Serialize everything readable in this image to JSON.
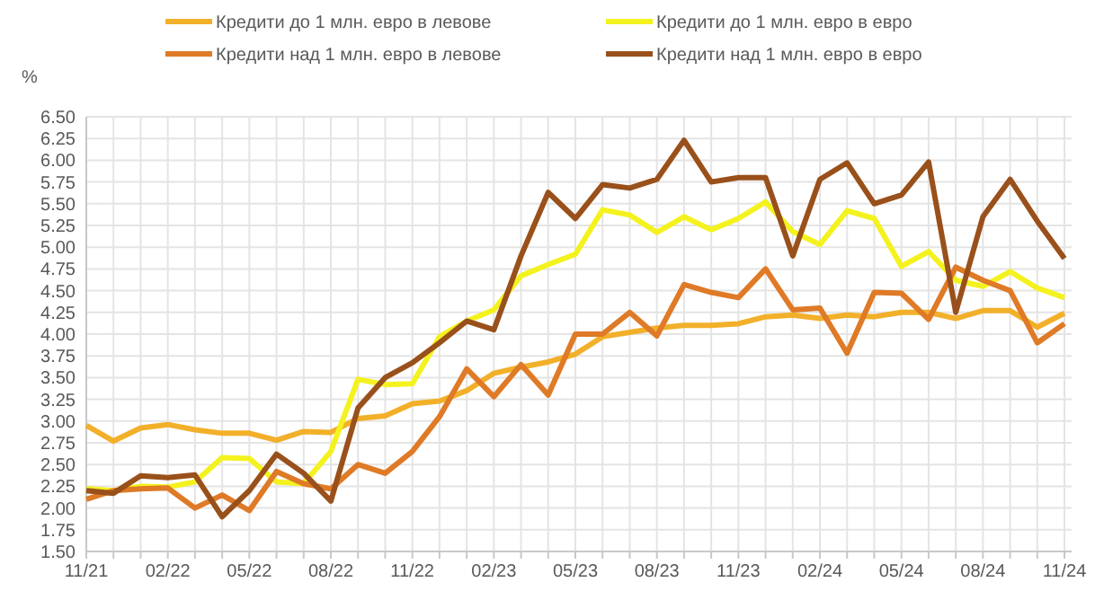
{
  "chart_data": {
    "type": "line",
    "ylabel": "%",
    "categories": [
      "11/21",
      null,
      null,
      "02/22",
      null,
      null,
      "05/22",
      null,
      null,
      "08/22",
      null,
      null,
      "11/22",
      null,
      null,
      "02/23",
      null,
      null,
      "05/23",
      null,
      null,
      "08/23",
      null,
      null,
      "11/23",
      null,
      null,
      "02/24",
      null,
      null,
      "05/24",
      null,
      null,
      "08/24",
      null,
      null,
      "11/24"
    ],
    "series": [
      {
        "name": "Кредити до 1 млн. евро в левове",
        "color": "#f2b02a",
        "values": [
          2.95,
          2.77,
          2.92,
          2.96,
          2.9,
          2.86,
          2.86,
          2.78,
          2.88,
          2.87,
          3.03,
          3.06,
          3.2,
          3.23,
          3.35,
          3.55,
          3.62,
          3.68,
          3.77,
          3.97,
          4.02,
          4.07,
          4.1,
          4.1,
          4.12,
          4.2,
          4.22,
          4.18,
          4.22,
          4.2,
          4.25,
          4.25,
          4.18,
          4.27,
          4.27,
          4.08,
          4.24
        ]
      },
      {
        "name": "Кредити до 1 млн. евро в евро",
        "color": "#f4f21e",
        "values": [
          2.22,
          2.2,
          2.25,
          2.24,
          2.3,
          2.58,
          2.57,
          2.3,
          2.28,
          2.65,
          3.48,
          3.42,
          3.43,
          3.97,
          4.15,
          4.28,
          4.67,
          4.8,
          4.92,
          5.43,
          5.37,
          5.17,
          5.35,
          5.2,
          5.33,
          5.52,
          5.18,
          5.03,
          5.42,
          5.33,
          4.78,
          4.95,
          4.62,
          4.55,
          4.72,
          4.53,
          4.42
        ]
      },
      {
        "name": "Кредити над 1 млн. евро в левове",
        "color": "#df7a26",
        "values": [
          2.1,
          2.2,
          2.22,
          2.23,
          2.0,
          2.15,
          1.97,
          2.42,
          2.28,
          2.22,
          2.5,
          2.4,
          2.65,
          3.05,
          3.6,
          3.28,
          3.65,
          3.3,
          4.0,
          4.0,
          4.25,
          3.98,
          4.57,
          4.48,
          4.42,
          4.75,
          4.28,
          4.3,
          3.78,
          4.48,
          4.47,
          4.17,
          4.77,
          4.62,
          4.5,
          3.9,
          4.12
        ]
      },
      {
        "name": "Кредити над 1 млн. евро в евро",
        "color": "#99501a",
        "values": [
          2.2,
          2.17,
          2.37,
          2.35,
          2.38,
          1.9,
          2.2,
          2.62,
          2.4,
          2.08,
          3.15,
          3.5,
          3.67,
          3.9,
          4.15,
          4.05,
          4.9,
          5.63,
          5.33,
          5.72,
          5.68,
          5.78,
          6.23,
          5.75,
          5.8,
          5.8,
          4.9,
          5.78,
          5.97,
          5.5,
          5.6,
          5.98,
          4.25,
          5.35,
          5.78,
          5.3,
          4.87
        ]
      }
    ],
    "ylim": [
      1.5,
      6.5
    ],
    "yticks": [
      {
        "value": 1.5,
        "label": "1.50"
      },
      {
        "value": 1.75,
        "label": "1.75"
      },
      {
        "value": 2,
        "label": "2.00"
      },
      {
        "value": 2.25,
        "label": "2.25"
      },
      {
        "value": 2.5,
        "label": "2.50"
      },
      {
        "value": 2.75,
        "label": "2.75"
      },
      {
        "value": 3,
        "label": "3.00"
      },
      {
        "value": 3.25,
        "label": "3.25"
      },
      {
        "value": 3.5,
        "label": "3.50"
      },
      {
        "value": 3.75,
        "label": "3.75"
      },
      {
        "value": 4,
        "label": "4.00"
      },
      {
        "value": 4.25,
        "label": "4.25"
      },
      {
        "value": 4.5,
        "label": "4.50"
      },
      {
        "value": 4.75,
        "label": "4.75"
      },
      {
        "value": 5,
        "label": "5.00"
      },
      {
        "value": 5.25,
        "label": "5.25"
      },
      {
        "value": 5.5,
        "label": "5.50"
      },
      {
        "value": 5.75,
        "label": "5.75"
      },
      {
        "value": 6,
        "label": "6.00"
      },
      {
        "value": 6.25,
        "label": "6.25"
      },
      {
        "value": 6.5,
        "label": "6.50"
      }
    ],
    "grid": true,
    "legend": "top",
    "marker": "none",
    "line_style": "solid"
  }
}
